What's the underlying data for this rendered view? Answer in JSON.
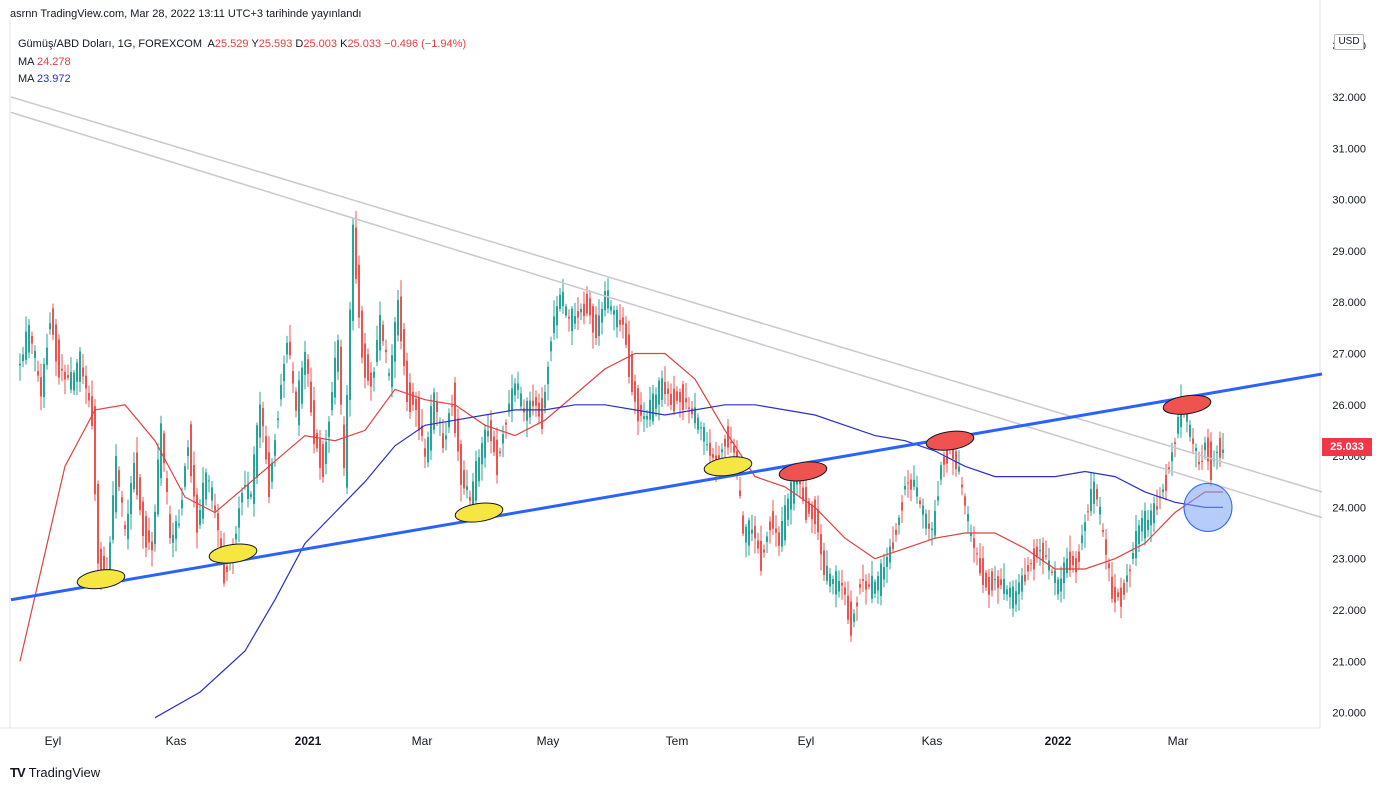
{
  "header": {
    "publish_line": "asrnn TradingView.com, Mar 28, 2022 13:11 UTC+3 tarihinde yayınlandı"
  },
  "legend": {
    "symbol": "Gümüş/ABD Doları, 1G, FOREXCOM",
    "open_label": "A",
    "open": "25.529",
    "high_label": "Y",
    "high": "25.593",
    "low_label": "D",
    "low": "25.003",
    "close_label": "K",
    "close": "25.033",
    "change": "−0.496 (−1.94%)",
    "ma1_label": "MA",
    "ma1_value": "24.278",
    "ma2_label": "MA",
    "ma2_value": "23.972"
  },
  "price_axis": {
    "currency": "USD",
    "last_price": "25.033",
    "last_price_color": "#f23645"
  },
  "footer": {
    "logo_text": "TradingView"
  },
  "chart_data": {
    "type": "candlestick",
    "y_ticks": [
      "20.000",
      "21.000",
      "22.000",
      "23.000",
      "24.000",
      "25.000",
      "26.000",
      "27.000",
      "28.000",
      "29.000",
      "30.000",
      "31.000",
      "32.000",
      "33.000"
    ],
    "x_ticks": [
      "Eyl",
      "Kas",
      "2021",
      "Mar",
      "May",
      "Tem",
      "Eyl",
      "Kas",
      "2022",
      "Mar"
    ],
    "ylim": [
      19.7,
      33.5
    ],
    "colors": {
      "up": "#26a69a",
      "down": "#ef5350",
      "ma1": "#e0403f",
      "ma2": "#2a2ecc",
      "trend": "#2962ff",
      "channel": "#c7c9d1"
    },
    "anchors": [
      [
        0,
        26.8
      ],
      [
        3,
        27.4
      ],
      [
        7,
        26.2
      ],
      [
        10,
        27.8
      ],
      [
        13,
        26.7
      ],
      [
        17,
        26.4
      ],
      [
        20,
        26.8
      ],
      [
        24,
        25.8
      ],
      [
        26,
        23.0
      ],
      [
        29,
        22.7
      ],
      [
        32,
        24.8
      ],
      [
        35,
        23.4
      ],
      [
        38,
        24.9
      ],
      [
        41,
        23.6
      ],
      [
        44,
        23.2
      ],
      [
        47,
        25.5
      ],
      [
        50,
        23.3
      ],
      [
        53,
        23.8
      ],
      [
        56,
        25.4
      ],
      [
        59,
        23.6
      ],
      [
        62,
        24.6
      ],
      [
        65,
        23.9
      ],
      [
        68,
        22.7
      ],
      [
        71,
        23.2
      ],
      [
        74,
        24.4
      ],
      [
        77,
        24.2
      ],
      [
        80,
        26.0
      ],
      [
        83,
        24.4
      ],
      [
        86,
        26.0
      ],
      [
        89,
        27.3
      ],
      [
        92,
        25.8
      ],
      [
        95,
        27.0
      ],
      [
        98,
        25.4
      ],
      [
        101,
        24.8
      ],
      [
        103,
        25.8
      ],
      [
        106,
        27.2
      ],
      [
        108,
        24.5
      ],
      [
        111,
        29.4
      ],
      [
        114,
        27.0
      ],
      [
        117,
        26.4
      ],
      [
        120,
        27.6
      ],
      [
        123,
        26.4
      ],
      [
        126,
        28.0
      ],
      [
        129,
        26.2
      ],
      [
        132,
        26.0
      ],
      [
        135,
        24.9
      ],
      [
        138,
        26.1
      ],
      [
        141,
        25.2
      ],
      [
        144,
        26.2
      ],
      [
        147,
        24.6
      ],
      [
        150,
        24.1
      ],
      [
        153,
        24.9
      ],
      [
        156,
        25.6
      ],
      [
        159,
        24.9
      ],
      [
        162,
        25.8
      ],
      [
        165,
        26.4
      ],
      [
        168,
        25.8
      ],
      [
        171,
        26.1
      ],
      [
        174,
        25.8
      ],
      [
        177,
        27.4
      ],
      [
        180,
        28.1
      ],
      [
        183,
        27.6
      ],
      [
        186,
        27.8
      ],
      [
        189,
        28.0
      ],
      [
        192,
        27.4
      ],
      [
        195,
        28.1
      ],
      [
        198,
        27.7
      ],
      [
        201,
        27.6
      ],
      [
        204,
        26.4
      ],
      [
        206,
        25.9
      ],
      [
        208,
        25.7
      ],
      [
        211,
        26.0
      ],
      [
        214,
        26.4
      ],
      [
        217,
        26.1
      ],
      [
        220,
        26.2
      ],
      [
        223,
        25.9
      ],
      [
        226,
        25.6
      ],
      [
        229,
        25.2
      ],
      [
        232,
        24.8
      ],
      [
        235,
        25.4
      ],
      [
        238,
        25.1
      ],
      [
        241,
        23.4
      ],
      [
        244,
        23.6
      ],
      [
        247,
        23.0
      ],
      [
        250,
        23.8
      ],
      [
        253,
        23.3
      ],
      [
        256,
        24.1
      ],
      [
        259,
        24.6
      ],
      [
        262,
        24.0
      ],
      [
        265,
        23.9
      ],
      [
        268,
        22.7
      ],
      [
        271,
        22.5
      ],
      [
        274,
        22.5
      ],
      [
        277,
        21.7
      ],
      [
        280,
        22.6
      ],
      [
        283,
        22.4
      ],
      [
        286,
        22.5
      ],
      [
        289,
        23.0
      ],
      [
        292,
        23.6
      ],
      [
        295,
        24.5
      ],
      [
        298,
        24.4
      ],
      [
        301,
        23.8
      ],
      [
        304,
        23.5
      ],
      [
        307,
        24.9
      ],
      [
        310,
        25.2
      ],
      [
        313,
        24.6
      ],
      [
        316,
        23.6
      ],
      [
        319,
        23.0
      ],
      [
        322,
        22.5
      ],
      [
        325,
        22.6
      ],
      [
        328,
        22.4
      ],
      [
        331,
        22.2
      ],
      [
        334,
        22.6
      ],
      [
        337,
        23.0
      ],
      [
        340,
        23.2
      ],
      [
        343,
        22.8
      ],
      [
        346,
        22.4
      ],
      [
        349,
        23.0
      ],
      [
        352,
        22.9
      ],
      [
        355,
        23.8
      ],
      [
        358,
        24.4
      ],
      [
        361,
        23.4
      ],
      [
        364,
        22.3
      ],
      [
        367,
        22.3
      ],
      [
        370,
        22.9
      ],
      [
        373,
        23.6
      ],
      [
        376,
        23.7
      ],
      [
        379,
        24.1
      ],
      [
        382,
        24.6
      ],
      [
        385,
        25.4
      ],
      [
        387,
        26.0
      ],
      [
        389,
        25.6
      ],
      [
        391,
        25.2
      ],
      [
        393,
        24.8
      ],
      [
        395,
        25.3
      ],
      [
        397,
        24.8
      ],
      [
        399,
        25.2
      ],
      [
        401,
        25.0
      ]
    ],
    "ma1": [
      [
        0,
        21.0
      ],
      [
        15,
        24.8
      ],
      [
        25,
        25.9
      ],
      [
        35,
        26.0
      ],
      [
        45,
        25.3
      ],
      [
        55,
        24.2
      ],
      [
        65,
        23.9
      ],
      [
        75,
        24.4
      ],
      [
        85,
        24.9
      ],
      [
        95,
        25.4
      ],
      [
        105,
        25.3
      ],
      [
        115,
        25.5
      ],
      [
        125,
        26.3
      ],
      [
        135,
        26.1
      ],
      [
        145,
        26.0
      ],
      [
        155,
        25.6
      ],
      [
        165,
        25.4
      ],
      [
        175,
        25.7
      ],
      [
        185,
        26.2
      ],
      [
        195,
        26.7
      ],
      [
        205,
        27.0
      ],
      [
        215,
        27.0
      ],
      [
        225,
        26.5
      ],
      [
        235,
        25.5
      ],
      [
        245,
        24.6
      ],
      [
        255,
        24.4
      ],
      [
        265,
        24.0
      ],
      [
        275,
        23.4
      ],
      [
        285,
        23.0
      ],
      [
        295,
        23.2
      ],
      [
        305,
        23.4
      ],
      [
        315,
        23.5
      ],
      [
        325,
        23.5
      ],
      [
        335,
        23.2
      ],
      [
        345,
        22.8
      ],
      [
        355,
        22.8
      ],
      [
        365,
        23.0
      ],
      [
        375,
        23.3
      ],
      [
        385,
        23.9
      ],
      [
        395,
        24.3
      ],
      [
        401,
        24.3
      ]
    ],
    "ma2": [
      [
        45,
        19.9
      ],
      [
        60,
        20.4
      ],
      [
        75,
        21.2
      ],
      [
        85,
        22.2
      ],
      [
        95,
        23.3
      ],
      [
        105,
        23.9
      ],
      [
        115,
        24.5
      ],
      [
        125,
        25.2
      ],
      [
        135,
        25.6
      ],
      [
        145,
        25.7
      ],
      [
        155,
        25.8
      ],
      [
        165,
        25.9
      ],
      [
        175,
        25.9
      ],
      [
        185,
        26.0
      ],
      [
        195,
        26.0
      ],
      [
        205,
        25.9
      ],
      [
        215,
        25.8
      ],
      [
        225,
        25.9
      ],
      [
        235,
        26.0
      ],
      [
        245,
        26.0
      ],
      [
        255,
        25.9
      ],
      [
        265,
        25.8
      ],
      [
        275,
        25.6
      ],
      [
        285,
        25.4
      ],
      [
        295,
        25.3
      ],
      [
        305,
        25.1
      ],
      [
        315,
        24.8
      ],
      [
        325,
        24.6
      ],
      [
        335,
        24.6
      ],
      [
        345,
        24.6
      ],
      [
        355,
        24.7
      ],
      [
        365,
        24.6
      ],
      [
        375,
        24.3
      ],
      [
        385,
        24.1
      ],
      [
        395,
        24.0
      ],
      [
        401,
        24.0
      ]
    ],
    "trend_support": {
      "from": [
        -3,
        22.2
      ],
      "to": [
        434,
        26.6
      ]
    },
    "channel_upper": {
      "from": [
        -3,
        32.0
      ],
      "to": [
        434,
        24.3
      ]
    },
    "channel_lower": {
      "from": [
        -3,
        31.7
      ],
      "to": [
        434,
        23.8
      ]
    },
    "highlights": [
      {
        "kind": "support-touch",
        "color": "#f5e642",
        "at": [
          27,
          22.6
        ]
      },
      {
        "kind": "support-touch",
        "color": "#f5e642",
        "at": [
          71,
          23.1
        ]
      },
      {
        "kind": "support-touch",
        "color": "#f5e642",
        "at": [
          153,
          23.9
        ]
      },
      {
        "kind": "support-touch",
        "color": "#f5e642",
        "at": [
          236,
          24.8
        ]
      },
      {
        "kind": "resistance-touch",
        "color": "#ef5350",
        "at": [
          261,
          24.7
        ]
      },
      {
        "kind": "resistance-touch",
        "color": "#ef5350",
        "at": [
          310,
          25.3
        ]
      },
      {
        "kind": "resistance-touch",
        "color": "#ef5350",
        "at": [
          389,
          26.0
        ]
      },
      {
        "kind": "ma-cross",
        "color": "#7aa2f7",
        "at": [
          396,
          24.0
        ]
      }
    ]
  }
}
